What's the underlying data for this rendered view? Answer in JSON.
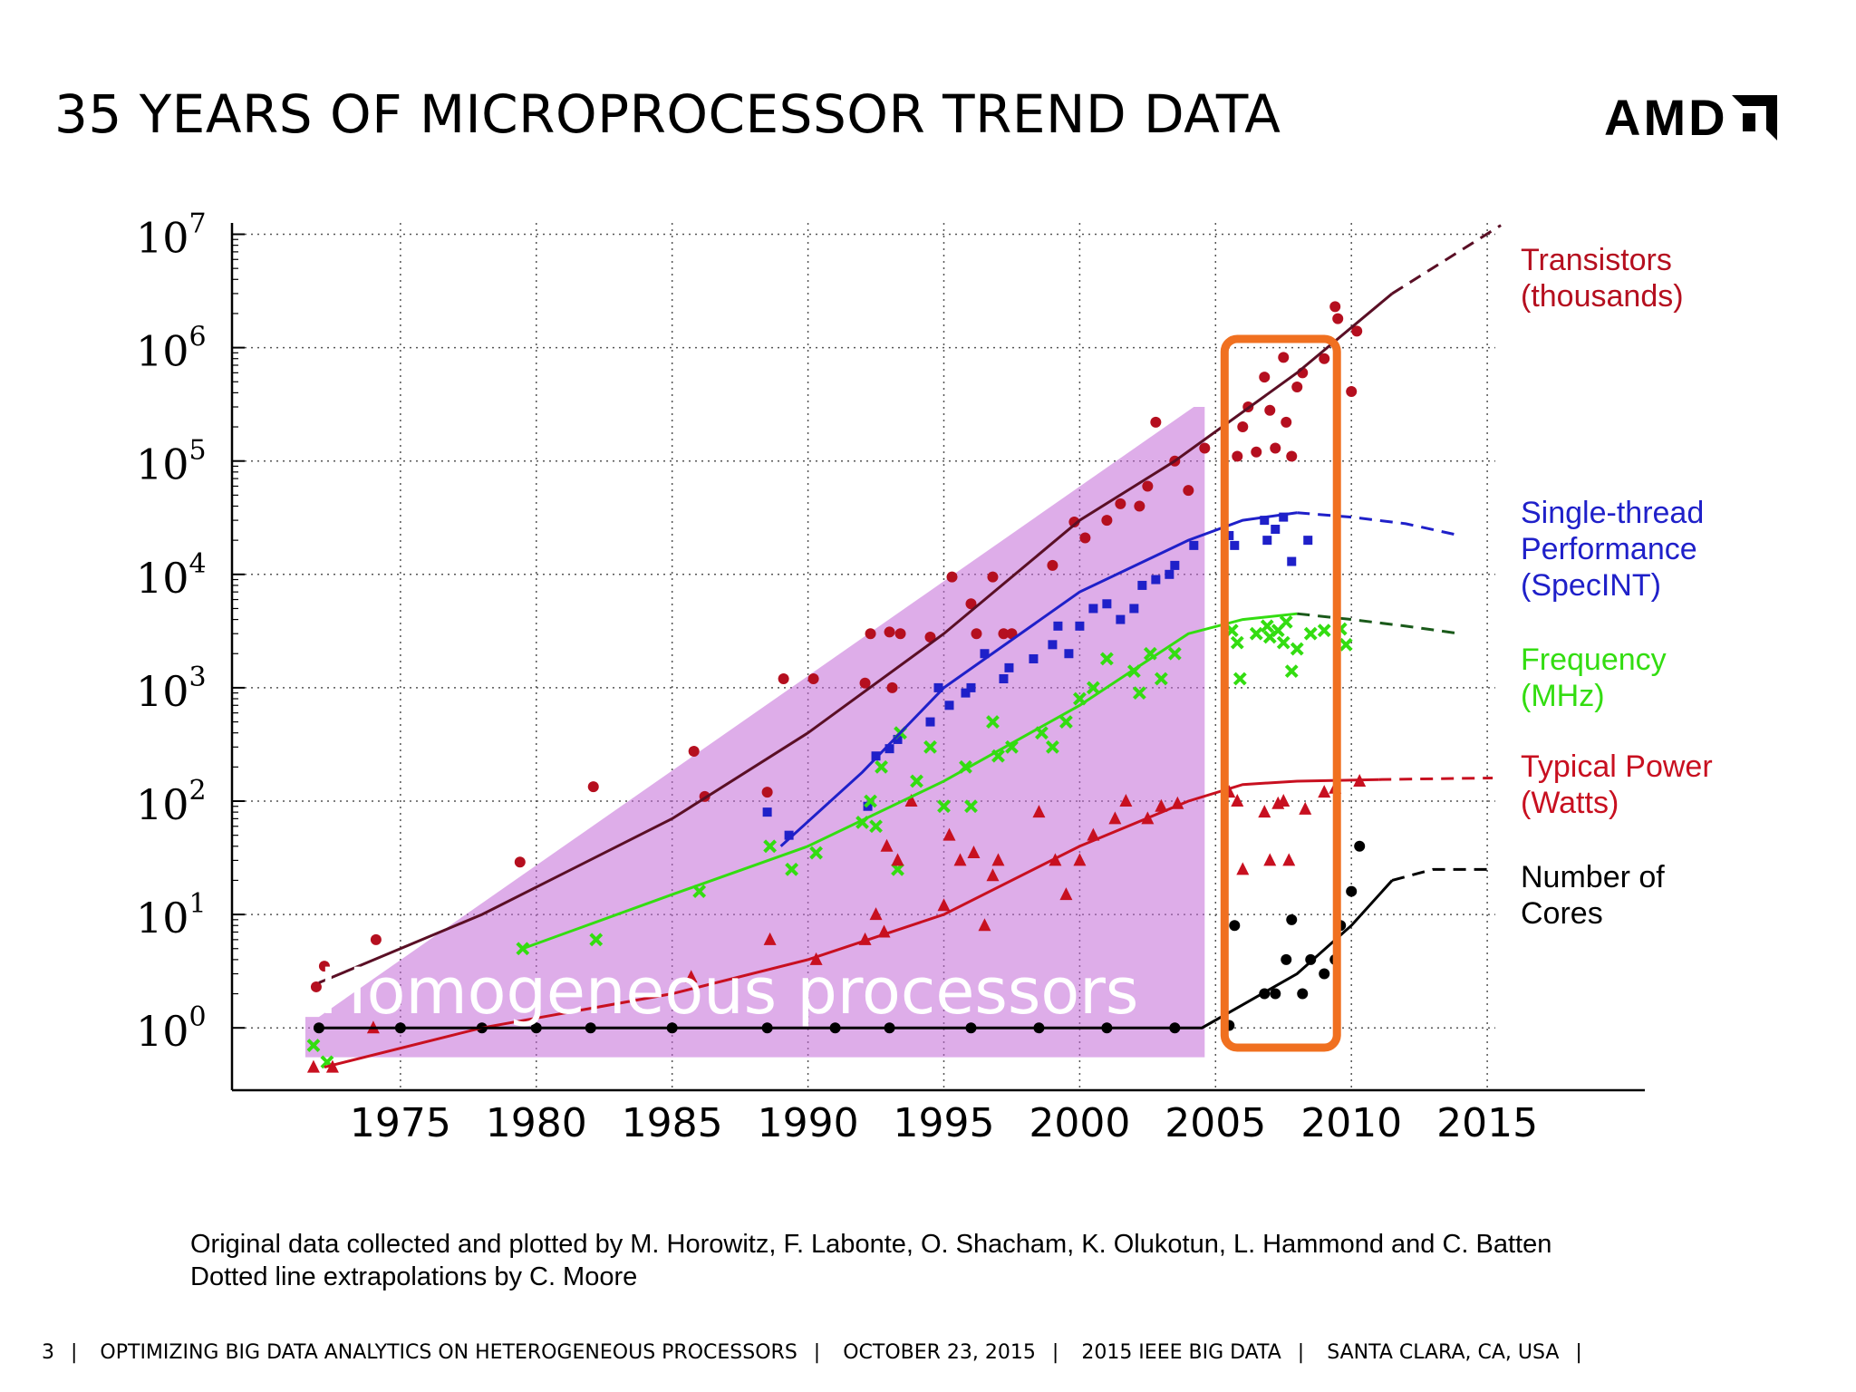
{
  "slide": {
    "title": "35 YEARS OF MICROPROCESSOR TREND DATA",
    "logo_text": "AMD",
    "credits": [
      "Original data collected and plotted by M. Horowitz, F. Labonte, O. Shacham, K. Olukotun, L. Hammond and C. Batten",
      "Dotted line extrapolations by C. Moore"
    ],
    "footer": {
      "page": "3",
      "sep": "|",
      "talk": "OPTIMIZING BIG DATA ANALYTICS ON HETEROGENEOUS PROCESSORS",
      "date": "OCTOBER 23, 2015",
      "conf": "2015 IEEE BIG DATA",
      "place": "SANTA CLARA, CA, USA"
    }
  },
  "chart_data": {
    "type": "scatter",
    "x_ticks": [
      1975,
      1980,
      1985,
      1990,
      1995,
      2000,
      2005,
      2010,
      2015
    ],
    "y_scale": "log",
    "y_ticks": [
      {
        "base": "10",
        "exp": "0"
      },
      {
        "base": "10",
        "exp": "1"
      },
      {
        "base": "10",
        "exp": "2"
      },
      {
        "base": "10",
        "exp": "3"
      },
      {
        "base": "10",
        "exp": "4"
      },
      {
        "base": "10",
        "exp": "5"
      },
      {
        "base": "10",
        "exp": "6"
      },
      {
        "base": "10",
        "exp": "7"
      }
    ],
    "xlim": [
      1968.8,
      2020.8
    ],
    "ylim_log10": [
      -0.55,
      7.1
    ],
    "grid": true,
    "annotation_text": "Homogeneous processors",
    "highlight_range": [
      2005.6,
      2009.2
    ],
    "series": [
      {
        "name": "Transistors (thousands)",
        "label_lines": [
          "Transistors",
          "(thousands)"
        ],
        "color": "#b50f1f",
        "marker": "circle",
        "trend": [
          [
            1972,
            2.5
          ],
          [
            1978,
            10
          ],
          [
            1985,
            70
          ],
          [
            1990,
            400
          ],
          [
            1995,
            3000
          ],
          [
            2000,
            30000
          ],
          [
            2003.5,
            100000
          ],
          [
            2008,
            600000
          ],
          [
            2011.5,
            3000000
          ]
        ],
        "extrapolation": [
          [
            2011.5,
            3000000
          ],
          [
            2015.5,
            12000000
          ]
        ],
        "points": [
          [
            1971.9,
            2.3
          ],
          [
            1972.2,
            3.5
          ],
          [
            1974.1,
            6
          ],
          [
            1979.4,
            29
          ],
          [
            1982.1,
            134
          ],
          [
            1985.8,
            275
          ],
          [
            1986.2,
            110
          ],
          [
            1988.5,
            120
          ],
          [
            1989.1,
            1200
          ],
          [
            1990.2,
            1200
          ],
          [
            1992.1,
            1100
          ],
          [
            1992.3,
            3000
          ],
          [
            1993,
            3100
          ],
          [
            1993.1,
            1000
          ],
          [
            1993.4,
            3000
          ],
          [
            1994.5,
            2800
          ],
          [
            1995.3,
            9500
          ],
          [
            1996,
            5500
          ],
          [
            1996.2,
            3000
          ],
          [
            1996.8,
            9500
          ],
          [
            1997.2,
            3000
          ],
          [
            1997.5,
            3000
          ],
          [
            1999,
            12000
          ],
          [
            1999.8,
            29000
          ],
          [
            2000.2,
            21000
          ],
          [
            2001,
            30000
          ],
          [
            2001.5,
            42000
          ],
          [
            2002.2,
            40000
          ],
          [
            2002.5,
            60000
          ],
          [
            2002.8,
            220000
          ],
          [
            2003.5,
            100000
          ],
          [
            2004,
            55000
          ],
          [
            2004.6,
            130000
          ],
          [
            2005.8,
            110000
          ],
          [
            2006,
            200000
          ],
          [
            2006.2,
            300000
          ],
          [
            2006.5,
            120000
          ],
          [
            2006.8,
            550000
          ],
          [
            2007,
            280000
          ],
          [
            2007.2,
            130000
          ],
          [
            2007.5,
            820000
          ],
          [
            2007.6,
            220000
          ],
          [
            2007.8,
            110000
          ],
          [
            2008,
            450000
          ],
          [
            2008.2,
            600000
          ],
          [
            2009,
            800000
          ],
          [
            2009.4,
            2300000
          ],
          [
            2009.5,
            1800000
          ],
          [
            2010,
            410000
          ],
          [
            2010.2,
            1400000
          ]
        ]
      },
      {
        "name": "Single-thread Performance (SpecINT)",
        "label_lines": [
          "Single-thread",
          "Performance",
          "(SpecINT)"
        ],
        "color": "#1f20c9",
        "marker": "square",
        "trend": [
          [
            1989,
            40
          ],
          [
            1992,
            180
          ],
          [
            1995,
            1000
          ],
          [
            2000,
            7000
          ],
          [
            2004,
            20000
          ],
          [
            2006,
            30000
          ],
          [
            2008,
            35000
          ]
        ],
        "extrapolation": [
          [
            2008,
            35000
          ],
          [
            2010,
            32000
          ],
          [
            2012,
            28000
          ],
          [
            2014,
            22000
          ]
        ],
        "points": [
          [
            1988.5,
            80
          ],
          [
            1989.3,
            50
          ],
          [
            1992.2,
            90
          ],
          [
            1992.5,
            250
          ],
          [
            1993,
            290
          ],
          [
            1993.3,
            350
          ],
          [
            1994.5,
            500
          ],
          [
            1994.8,
            1000
          ],
          [
            1995.2,
            700
          ],
          [
            1995.8,
            900
          ],
          [
            1996,
            1000
          ],
          [
            1996.5,
            2000
          ],
          [
            1997.2,
            1200
          ],
          [
            1997.4,
            1500
          ],
          [
            1998.3,
            1800
          ],
          [
            1999,
            2400
          ],
          [
            1999.2,
            3500
          ],
          [
            1999.6,
            2000
          ],
          [
            2000,
            3500
          ],
          [
            2000.5,
            5000
          ],
          [
            2001,
            5500
          ],
          [
            2001.5,
            4000
          ],
          [
            2002,
            5000
          ],
          [
            2002.3,
            8000
          ],
          [
            2002.8,
            9000
          ],
          [
            2003.3,
            10000
          ],
          [
            2003.5,
            12000
          ],
          [
            2004.2,
            18000
          ],
          [
            2005.5,
            22000
          ],
          [
            2005.7,
            18000
          ],
          [
            2006.8,
            30000
          ],
          [
            2006.9,
            20000
          ],
          [
            2007.2,
            25000
          ],
          [
            2007.5,
            32000
          ],
          [
            2007.8,
            13000
          ],
          [
            2008.4,
            20000
          ]
        ]
      },
      {
        "name": "Frequency (MHz)",
        "label_lines": [
          "Frequency",
          "(MHz)"
        ],
        "color": "#33dd11",
        "marker": "x",
        "trend": [
          [
            1979.5,
            5
          ],
          [
            1985,
            15
          ],
          [
            1990,
            40
          ],
          [
            1995,
            150
          ],
          [
            2000,
            700
          ],
          [
            2004,
            3000
          ],
          [
            2006,
            4000
          ],
          [
            2008,
            4500
          ]
        ],
        "extrapolation": [
          [
            2008,
            4500
          ],
          [
            2010,
            4000
          ],
          [
            2012,
            3500
          ],
          [
            2014,
            3000
          ]
        ],
        "points": [
          [
            1971.8,
            0.7
          ],
          [
            1972.3,
            0.5
          ],
          [
            1979.5,
            5
          ],
          [
            1982.2,
            6
          ],
          [
            1986,
            16
          ],
          [
            1988.6,
            40
          ],
          [
            1989.4,
            25
          ],
          [
            1990.3,
            35
          ],
          [
            1992,
            65
          ],
          [
            1992.3,
            100
          ],
          [
            1992.5,
            60
          ],
          [
            1992.7,
            200
          ],
          [
            1993.3,
            25
          ],
          [
            1993.4,
            400
          ],
          [
            1994,
            150
          ],
          [
            1994.5,
            300
          ],
          [
            1995,
            90
          ],
          [
            1995.8,
            200
          ],
          [
            1996,
            90
          ],
          [
            1996.8,
            500
          ],
          [
            1997,
            250
          ],
          [
            1997.5,
            300
          ],
          [
            1998.6,
            400
          ],
          [
            1999,
            300
          ],
          [
            1999.5,
            500
          ],
          [
            2000,
            800
          ],
          [
            2000.5,
            1000
          ],
          [
            2001,
            1800
          ],
          [
            2002,
            1400
          ],
          [
            2002.2,
            900
          ],
          [
            2002.6,
            2000
          ],
          [
            2003,
            1200
          ],
          [
            2003.5,
            2000
          ],
          [
            2005.6,
            3200
          ],
          [
            2005.8,
            2500
          ],
          [
            2005.9,
            1200
          ],
          [
            2006.5,
            3000
          ],
          [
            2006.9,
            3500
          ],
          [
            2007,
            2800
          ],
          [
            2007.3,
            3200
          ],
          [
            2007.5,
            2500
          ],
          [
            2007.6,
            3800
          ],
          [
            2007.8,
            1400
          ],
          [
            2008,
            2200
          ],
          [
            2008.5,
            3000
          ],
          [
            2009,
            3200
          ],
          [
            2009.6,
            3300
          ],
          [
            2009.8,
            2400
          ]
        ]
      },
      {
        "name": "Typical Power (Watts)",
        "label_lines": [
          "Typical Power",
          "(Watts)"
        ],
        "color": "#c81020",
        "marker": "triangle",
        "trend": [
          [
            1972.2,
            0.45
          ],
          [
            1978,
            1
          ],
          [
            1985,
            2
          ],
          [
            1990,
            4
          ],
          [
            1995,
            10
          ],
          [
            2000,
            40
          ],
          [
            2004,
            100
          ],
          [
            2006,
            140
          ],
          [
            2008,
            150
          ],
          [
            2011,
            155
          ]
        ],
        "extrapolation": [
          [
            2011,
            155
          ],
          [
            2015.2,
            160
          ]
        ],
        "points": [
          [
            1971.8,
            0.45
          ],
          [
            1972.5,
            0.45
          ],
          [
            1974,
            1
          ],
          [
            1985.7,
            2.8
          ],
          [
            1988.6,
            6
          ],
          [
            1990.3,
            4
          ],
          [
            1992.1,
            6
          ],
          [
            1992.5,
            10
          ],
          [
            1992.8,
            7
          ],
          [
            1992.9,
            40
          ],
          [
            1993.3,
            30
          ],
          [
            1993.8,
            100
          ],
          [
            1995,
            12
          ],
          [
            1995.2,
            50
          ],
          [
            1995.6,
            30
          ],
          [
            1996.1,
            35
          ],
          [
            1996.5,
            8
          ],
          [
            1996.8,
            22
          ],
          [
            1997,
            30
          ],
          [
            1998.5,
            80
          ],
          [
            1999.1,
            30
          ],
          [
            1999.5,
            15
          ],
          [
            2000,
            30
          ],
          [
            2000.5,
            50
          ],
          [
            2001.3,
            70
          ],
          [
            2001.7,
            100
          ],
          [
            2002.5,
            70
          ],
          [
            2003,
            90
          ],
          [
            2003.6,
            95
          ],
          [
            2005.5,
            120
          ],
          [
            2005.8,
            100
          ],
          [
            2006,
            25
          ],
          [
            2006.8,
            80
          ],
          [
            2007,
            30
          ],
          [
            2007.3,
            95
          ],
          [
            2007.5,
            100
          ],
          [
            2007.7,
            30
          ],
          [
            2008.3,
            85
          ],
          [
            2009,
            120
          ],
          [
            2009.4,
            130
          ],
          [
            2010.3,
            150
          ]
        ]
      },
      {
        "name": "Number of Cores",
        "label_lines": [
          "Number of",
          "Cores"
        ],
        "color": "#000000",
        "marker": "circle",
        "trend": [
          [
            1972,
            1
          ],
          [
            1990,
            1
          ],
          [
            2004.5,
            1
          ],
          [
            2006,
            1.6
          ],
          [
            2008,
            3
          ],
          [
            2010,
            8
          ],
          [
            2011.5,
            20
          ]
        ],
        "extrapolation": [
          [
            2011.5,
            20
          ],
          [
            2013,
            25
          ],
          [
            2015,
            25
          ]
        ],
        "points": [
          [
            1972,
            1
          ],
          [
            1975,
            1
          ],
          [
            1978,
            1
          ],
          [
            1980,
            1
          ],
          [
            1982,
            1
          ],
          [
            1985,
            1
          ],
          [
            1988.5,
            1
          ],
          [
            1991,
            1
          ],
          [
            1993,
            1
          ],
          [
            1996,
            1
          ],
          [
            1998.5,
            1
          ],
          [
            2001,
            1
          ],
          [
            2003.5,
            1
          ],
          [
            2005.5,
            1.05
          ],
          [
            2005.7,
            8
          ],
          [
            2006.8,
            2
          ],
          [
            2007.2,
            2
          ],
          [
            2007.6,
            4
          ],
          [
            2007.8,
            9
          ],
          [
            2008.2,
            2
          ],
          [
            2008.5,
            4
          ],
          [
            2009,
            3
          ],
          [
            2009.4,
            4
          ],
          [
            2009.6,
            8
          ],
          [
            2010,
            16
          ],
          [
            2010.3,
            40
          ]
        ]
      }
    ]
  }
}
